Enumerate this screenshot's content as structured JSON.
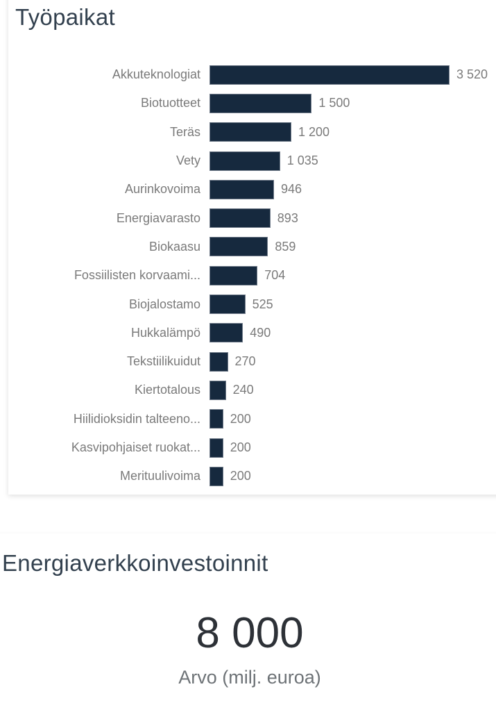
{
  "chart_data": [
    {
      "type": "bar",
      "orientation": "horizontal",
      "title": "Työpaikat",
      "categories": [
        "Akkuteknologiat",
        "Biotuotteet",
        "Teräs",
        "Vety",
        "Aurinkovoima",
        "Energiavarasto",
        "Biokaasu",
        "Fossiilisten korvaami...",
        "Biojalostamo",
        "Hukkalämpö",
        "Tekstiilikuidut",
        "Kiertotalous",
        "Hiilidioksidin talteeno...",
        "Kasvipohjaiset ruokat...",
        "Merituulivoima"
      ],
      "values": [
        3520,
        1500,
        1200,
        1035,
        946,
        893,
        859,
        704,
        525,
        490,
        270,
        240,
        200,
        200,
        200
      ],
      "data_labels": [
        "3 520",
        "1 500",
        "1 200",
        "1 035",
        "946",
        "893",
        "859",
        "704",
        "525",
        "490",
        "270",
        "240",
        "200",
        "200",
        "200"
      ],
      "xlim": [
        0,
        3520
      ],
      "grid": false,
      "legend": "none",
      "sort": "descending",
      "bar_color": "#16293e",
      "label_color": "#7a7a7a",
      "title_color": "#32404e"
    },
    {
      "type": "kpi-card",
      "title": "Energiaverkkoinvestoinnit",
      "value": 8000,
      "value_label": "8 000",
      "caption": "Arvo (milj. euroa)",
      "value_color": "#2d3137",
      "caption_color": "#6e7377"
    }
  ]
}
